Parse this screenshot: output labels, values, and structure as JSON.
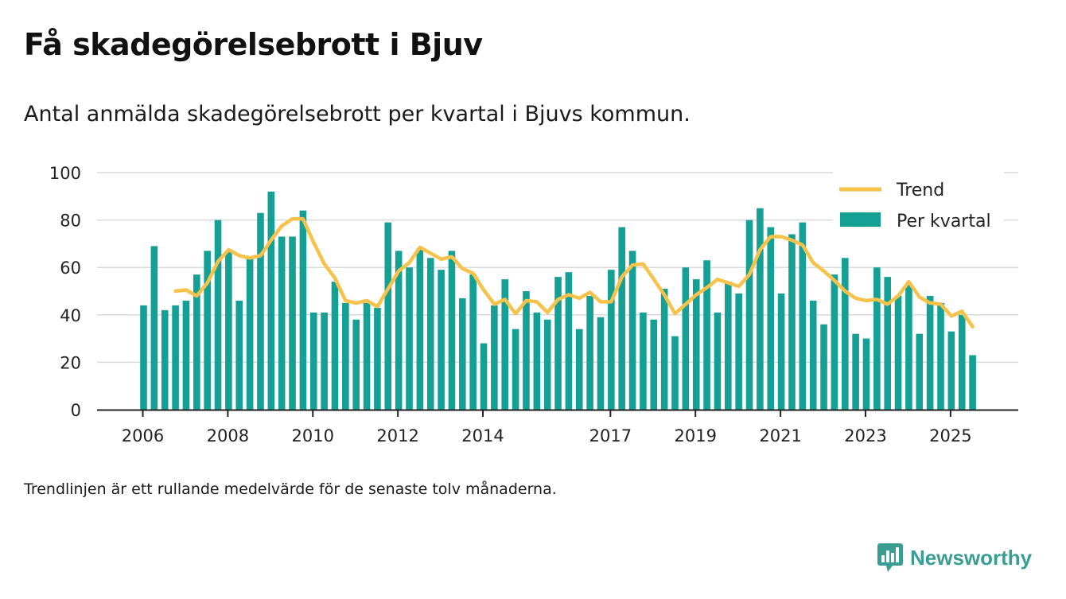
{
  "title": "Få skadegörelsebrott i Bjuv",
  "subtitle": "Antal anmälda skadegörelsebrott per kvartal i Bjuvs kommun.",
  "footnote": "Trendlinjen är ett rullande medelvärde för de senaste tolv månaderna.",
  "brand": {
    "name": "Newsworthy",
    "color": "#3a9d94"
  },
  "colors": {
    "bar": "#14a095",
    "trend": "#f7c24a",
    "grid": "#d9d9d9",
    "axis": "#222222"
  },
  "chart_data": {
    "type": "bar",
    "title": "Få skadegörelsebrott i Bjuv",
    "xlabel": "",
    "ylabel": "",
    "ylim": [
      0,
      100
    ],
    "yticks": [
      0,
      20,
      40,
      60,
      80,
      100
    ],
    "xticks": [
      "2006",
      "2008",
      "2010",
      "2012",
      "2014",
      "2017",
      "2019",
      "2021",
      "2023",
      "2025"
    ],
    "legend": [
      "Trend",
      "Per kvartal"
    ],
    "series": [
      {
        "name": "Per kvartal",
        "type": "bar",
        "values": [
          44,
          69,
          42,
          44,
          46,
          57,
          67,
          80,
          67,
          46,
          64,
          83,
          92,
          73,
          73,
          84,
          41,
          41,
          54,
          45,
          38,
          45,
          43,
          79,
          67,
          60,
          68,
          64,
          59,
          67,
          47,
          57,
          28,
          44,
          55,
          34,
          50,
          41,
          38,
          56,
          58,
          34,
          48,
          39,
          59,
          77,
          67,
          41,
          38,
          51,
          31,
          60,
          55,
          63,
          41,
          54,
          49,
          80,
          85,
          77,
          49,
          74,
          79,
          46,
          36,
          57,
          64,
          32,
          30,
          60,
          56,
          48,
          53,
          32,
          48,
          45,
          33,
          40,
          23
        ]
      },
      {
        "name": "Trend",
        "type": "line",
        "start_index": 3,
        "values": [
          50,
          50.5,
          48,
          53.5,
          62.5,
          67.5,
          65,
          64,
          65,
          71.5,
          77.5,
          80.5,
          80.5,
          70.5,
          61.5,
          55.5,
          46,
          45,
          46,
          43.5,
          51,
          58.5,
          62,
          68.5,
          66,
          63.5,
          64.5,
          59.5,
          57.5,
          50.5,
          44.5,
          46.5,
          40.5,
          46,
          45.5,
          41,
          46.5,
          48.5,
          47,
          49.5,
          45.5,
          45.5,
          56,
          61,
          61.5,
          55,
          48.5,
          40.5,
          44.5,
          48.5,
          51.5,
          55,
          53.5,
          52,
          57,
          67.5,
          73,
          73,
          71.5,
          69.5,
          62,
          58.5,
          54.5,
          50,
          47,
          46,
          46.5,
          44.5,
          48,
          54,
          47.5,
          45,
          44.5,
          39.5,
          41.5,
          35
        ]
      }
    ]
  }
}
